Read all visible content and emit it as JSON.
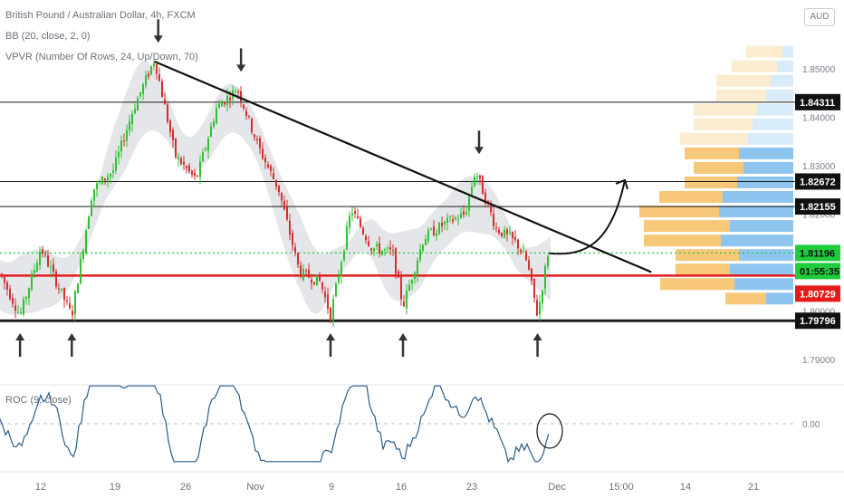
{
  "header": {
    "title": "British Pound / Australian Dollar, 4h, FXCM",
    "indicator_bb": "BB (20, close, 2, 0)",
    "indicator_vpvr": "VPVR (Number Of Rows, 24, Up/Down, 70)",
    "roc_label": "ROC (9, close)",
    "currency_badge": "AUD"
  },
  "colors": {
    "up": "#2fc12f",
    "down": "#d32f2f",
    "bb_fill": "#dcdee3",
    "roc_line": "#2a5c8a",
    "support_red": "#e31b1b",
    "current_green": "#1fcc3c",
    "vp_up": "#f7c879",
    "vp_down": "#8ec5ef"
  },
  "price_axis": {
    "ticks": [
      "1.85000",
      "1.84000",
      "1.83000",
      "1.82000",
      "1.80000",
      "1.79000"
    ],
    "tags": [
      {
        "label": "1.84311",
        "style": "black"
      },
      {
        "label": "1.82672",
        "style": "black"
      },
      {
        "label": "1.82155",
        "style": "black"
      },
      {
        "label": "1.81196",
        "style": "green"
      },
      {
        "label": "01:55:35",
        "style": "green"
      },
      {
        "label": "1.80729",
        "style": "red"
      },
      {
        "label": "1.79796",
        "style": "black"
      }
    ],
    "roc_tick": "0.00"
  },
  "time_axis": [
    "12",
    "19",
    "26",
    "Nov",
    "9",
    "16",
    "23",
    "Dec",
    "15:00",
    "14",
    "21"
  ],
  "chart_data": {
    "type": "candlestick",
    "title": "British Pound / Australian Dollar, 4h, FXCM",
    "symbol": "GBPAUD",
    "timeframe": "4h",
    "price_range": [
      1.788,
      1.856
    ],
    "horizontal_levels": [
      {
        "value": 1.84311,
        "color": "black"
      },
      {
        "value": 1.82672,
        "color": "black"
      },
      {
        "value": 1.82155,
        "color": "black"
      },
      {
        "value": 1.81196,
        "color": "green-dotted",
        "label": "current"
      },
      {
        "value": 1.80729,
        "color": "red"
      },
      {
        "value": 1.79796,
        "color": "black-thick"
      }
    ],
    "trendline": {
      "from": {
        "date": "Oct 23",
        "price": 1.8515
      },
      "to": {
        "date": "Dec 10",
        "price": 1.808
      }
    },
    "projection": {
      "from_price": 1.8119,
      "to_price": 1.827
    },
    "down_arrows": [
      "Oct 23",
      "Oct 31",
      "Nov 23"
    ],
    "up_arrows": [
      "Oct 10",
      "Oct 15",
      "Nov 9",
      "Nov 16",
      "Nov 29"
    ],
    "price_path": [
      {
        "date": "Oct 8",
        "price": 1.808
      },
      {
        "date": "Oct 10",
        "price": 1.799
      },
      {
        "date": "Oct 12",
        "price": 1.813
      },
      {
        "date": "Oct 15",
        "price": 1.799
      },
      {
        "date": "Oct 17",
        "price": 1.825
      },
      {
        "date": "Oct 19",
        "price": 1.829
      },
      {
        "date": "Oct 21",
        "price": 1.842
      },
      {
        "date": "Oct 23",
        "price": 1.852
      },
      {
        "date": "Oct 25",
        "price": 1.832
      },
      {
        "date": "Oct 27",
        "price": 1.827
      },
      {
        "date": "Oct 29",
        "price": 1.842
      },
      {
        "date": "Oct 31",
        "price": 1.846
      },
      {
        "date": "Nov 2",
        "price": 1.834
      },
      {
        "date": "Nov 4",
        "price": 1.825
      },
      {
        "date": "Nov 6",
        "price": 1.808
      },
      {
        "date": "Nov 8",
        "price": 1.806
      },
      {
        "date": "Nov 9",
        "price": 1.799
      },
      {
        "date": "Nov 11",
        "price": 1.821
      },
      {
        "date": "Nov 13",
        "price": 1.813
      },
      {
        "date": "Nov 15",
        "price": 1.812
      },
      {
        "date": "Nov 16",
        "price": 1.801
      },
      {
        "date": "Nov 18",
        "price": 1.815
      },
      {
        "date": "Nov 20",
        "price": 1.818
      },
      {
        "date": "Nov 22",
        "price": 1.82
      },
      {
        "date": "Nov 23",
        "price": 1.829
      },
      {
        "date": "Nov 25",
        "price": 1.817
      },
      {
        "date": "Nov 27",
        "price": 1.814
      },
      {
        "date": "Nov 28",
        "price": 1.81
      },
      {
        "date": "Nov 29",
        "price": 1.799
      },
      {
        "date": "Nov 30",
        "price": 1.8119
      }
    ],
    "roc_range": [
      -1.2,
      1.2
    ]
  }
}
